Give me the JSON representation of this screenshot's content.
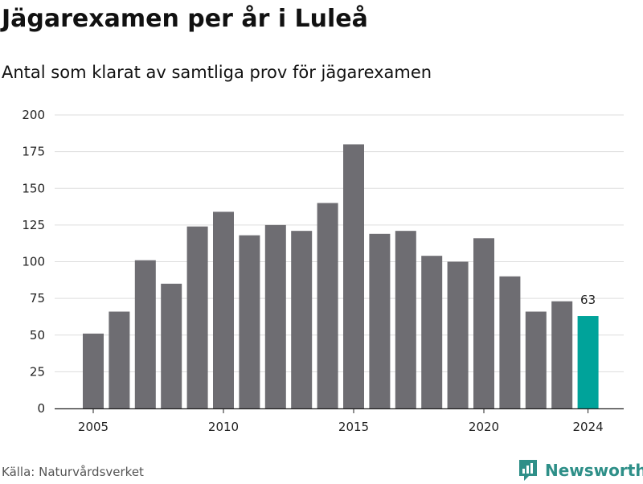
{
  "header": {
    "title": "Jägarexamen per år i Luleå",
    "subtitle": "Antal som klarat av samtliga prov för jägarexamen"
  },
  "footer": {
    "source": "Källa: Naturvårdsverket",
    "brand": "Newsworthy"
  },
  "colors": {
    "bar": "#6e6d72",
    "highlight": "#00a39a",
    "grid": "#dddddd",
    "axis": "#222222",
    "brand": "#2e8f88"
  },
  "icons": {
    "brand_logo": "newsworthy-logo-icon"
  },
  "chart_data": {
    "type": "bar",
    "title": "Jägarexamen per år i Luleå",
    "subtitle": "Antal som klarat av samtliga prov för jägarexamen",
    "xlabel": "",
    "ylabel": "",
    "x": [
      2005,
      2006,
      2007,
      2008,
      2009,
      2010,
      2011,
      2012,
      2013,
      2014,
      2015,
      2016,
      2017,
      2018,
      2019,
      2020,
      2021,
      2022,
      2023,
      2024
    ],
    "values": [
      51,
      66,
      101,
      85,
      124,
      134,
      118,
      125,
      121,
      140,
      180,
      119,
      121,
      104,
      100,
      116,
      90,
      66,
      73,
      63
    ],
    "x_ticks": [
      2005,
      2010,
      2015,
      2020,
      2024
    ],
    "y_ticks": [
      0,
      25,
      50,
      75,
      100,
      125,
      150,
      175,
      200
    ],
    "ylim": [
      0,
      200
    ],
    "grid": true,
    "highlight": {
      "x": 2024,
      "label": "63"
    }
  }
}
